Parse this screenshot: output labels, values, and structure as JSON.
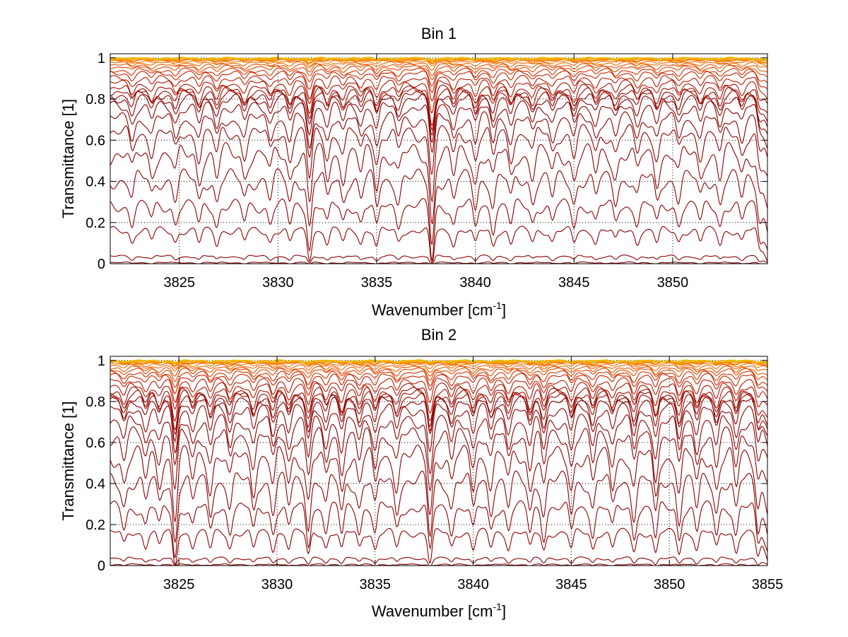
{
  "chart_data": [
    {
      "type": "line",
      "title": "Bin 1",
      "xlabel": {
        "base": "Wavenumber [cm",
        "sup": "-1",
        "close": "]"
      },
      "ylabel": "Transmittance [1]",
      "xlim": [
        3821.5,
        3854.8
      ],
      "ylim": [
        0,
        1.02
      ],
      "xticks": [
        3825,
        3830,
        3835,
        3840,
        3845,
        3850
      ],
      "xtick_labels": [
        "3825",
        "3830",
        "3835",
        "3840",
        "3845",
        "3850"
      ],
      "yticks": [
        0,
        0.2,
        0.4,
        0.6,
        0.8,
        1
      ],
      "ytick_labels": [
        "0",
        "0.2",
        "0.4",
        "0.6",
        "0.8",
        "1"
      ],
      "grid": true,
      "series_levels": [
        0.998,
        0.995,
        0.99,
        0.983,
        0.975,
        0.965,
        0.955,
        0.94,
        0.925,
        0.9,
        0.875,
        0.85,
        0.835,
        0.82,
        0.8,
        0.76,
        0.7,
        0.63,
        0.53,
        0.41,
        0.28,
        0.16,
        0.035,
        0.005
      ],
      "absorption_lines": [
        {
          "x": 3822.6,
          "depth": 0.3
        },
        {
          "x": 3823.6,
          "depth": 0.25
        },
        {
          "x": 3824.8,
          "depth": 0.3
        },
        {
          "x": 3826.0,
          "depth": 0.35
        },
        {
          "x": 3826.9,
          "depth": 0.35
        },
        {
          "x": 3828.3,
          "depth": 0.3
        },
        {
          "x": 3829.6,
          "depth": 0.3
        },
        {
          "x": 3830.6,
          "depth": 0.35
        },
        {
          "x": 3831.6,
          "depth": 0.75
        },
        {
          "x": 3832.5,
          "depth": 0.35
        },
        {
          "x": 3833.3,
          "depth": 0.3
        },
        {
          "x": 3834.2,
          "depth": 0.3
        },
        {
          "x": 3835.0,
          "depth": 0.45
        },
        {
          "x": 3836.1,
          "depth": 0.3
        },
        {
          "x": 3837.8,
          "depth": 1.0
        },
        {
          "x": 3838.9,
          "depth": 0.35
        },
        {
          "x": 3840.0,
          "depth": 0.4
        },
        {
          "x": 3840.9,
          "depth": 0.4
        },
        {
          "x": 3841.8,
          "depth": 0.35
        },
        {
          "x": 3842.9,
          "depth": 0.3
        },
        {
          "x": 3843.9,
          "depth": 0.3
        },
        {
          "x": 3845.0,
          "depth": 0.35
        },
        {
          "x": 3846.1,
          "depth": 0.3
        },
        {
          "x": 3847.1,
          "depth": 0.3
        },
        {
          "x": 3848.2,
          "depth": 0.3
        },
        {
          "x": 3849.2,
          "depth": 0.35
        },
        {
          "x": 3850.3,
          "depth": 0.3
        },
        {
          "x": 3851.4,
          "depth": 0.3
        },
        {
          "x": 3852.4,
          "depth": 0.35
        },
        {
          "x": 3853.5,
          "depth": 0.3
        },
        {
          "x": 3854.4,
          "depth": 0.3
        }
      ]
    },
    {
      "type": "line",
      "title": "Bin 2",
      "xlabel": {
        "base": "Wavenumber [cm",
        "sup": "-1",
        "close": "]"
      },
      "ylabel": "Transmittance [1]",
      "xlim": [
        3821.5,
        3855
      ],
      "ylim": [
        0,
        1.02
      ],
      "xticks": [
        3825,
        3830,
        3835,
        3840,
        3845,
        3850,
        3855
      ],
      "xtick_labels": [
        "3825",
        "3830",
        "3835",
        "3840",
        "3845",
        "3850",
        "3855"
      ],
      "yticks": [
        0,
        0.2,
        0.4,
        0.6,
        0.8,
        1
      ],
      "ytick_labels": [
        "0",
        "0.2",
        "0.4",
        "0.6",
        "0.8",
        "1"
      ],
      "grid": true,
      "series_levels": [
        0.998,
        0.995,
        0.99,
        0.983,
        0.975,
        0.965,
        0.955,
        0.94,
        0.925,
        0.9,
        0.875,
        0.85,
        0.835,
        0.82,
        0.8,
        0.76,
        0.7,
        0.63,
        0.53,
        0.41,
        0.28,
        0.16,
        0.035,
        0.005
      ],
      "absorption_lines": [
        {
          "x": 3822.2,
          "depth": 0.35
        },
        {
          "x": 3823.3,
          "depth": 0.35
        },
        {
          "x": 3824.0,
          "depth": 0.35
        },
        {
          "x": 3824.8,
          "depth": 0.9
        },
        {
          "x": 3825.7,
          "depth": 0.35
        },
        {
          "x": 3826.6,
          "depth": 0.45
        },
        {
          "x": 3827.6,
          "depth": 0.4
        },
        {
          "x": 3828.8,
          "depth": 0.45
        },
        {
          "x": 3829.8,
          "depth": 0.45
        },
        {
          "x": 3830.6,
          "depth": 0.4
        },
        {
          "x": 3831.6,
          "depth": 0.65
        },
        {
          "x": 3832.5,
          "depth": 0.4
        },
        {
          "x": 3833.3,
          "depth": 0.5
        },
        {
          "x": 3834.2,
          "depth": 0.4
        },
        {
          "x": 3835.0,
          "depth": 0.45
        },
        {
          "x": 3836.1,
          "depth": 0.4
        },
        {
          "x": 3837.8,
          "depth": 0.85
        },
        {
          "x": 3838.9,
          "depth": 0.4
        },
        {
          "x": 3840.0,
          "depth": 0.45
        },
        {
          "x": 3840.9,
          "depth": 0.4
        },
        {
          "x": 3841.8,
          "depth": 0.4
        },
        {
          "x": 3842.9,
          "depth": 0.45
        },
        {
          "x": 3843.6,
          "depth": 0.5
        },
        {
          "x": 3845.0,
          "depth": 0.45
        },
        {
          "x": 3846.1,
          "depth": 0.45
        },
        {
          "x": 3847.1,
          "depth": 0.4
        },
        {
          "x": 3848.2,
          "depth": 0.5
        },
        {
          "x": 3849.3,
          "depth": 0.6
        },
        {
          "x": 3850.5,
          "depth": 0.55
        },
        {
          "x": 3851.4,
          "depth": 0.45
        },
        {
          "x": 3852.4,
          "depth": 0.45
        },
        {
          "x": 3853.4,
          "depth": 0.5
        },
        {
          "x": 3854.5,
          "depth": 0.55
        }
      ]
    }
  ],
  "colors": {
    "line_dark": "#8b0000",
    "line_mid": "#cc2200",
    "line_light": "#ff7a00",
    "line_top": "#e8c800",
    "grid": "#000000",
    "axis": "#000000"
  }
}
